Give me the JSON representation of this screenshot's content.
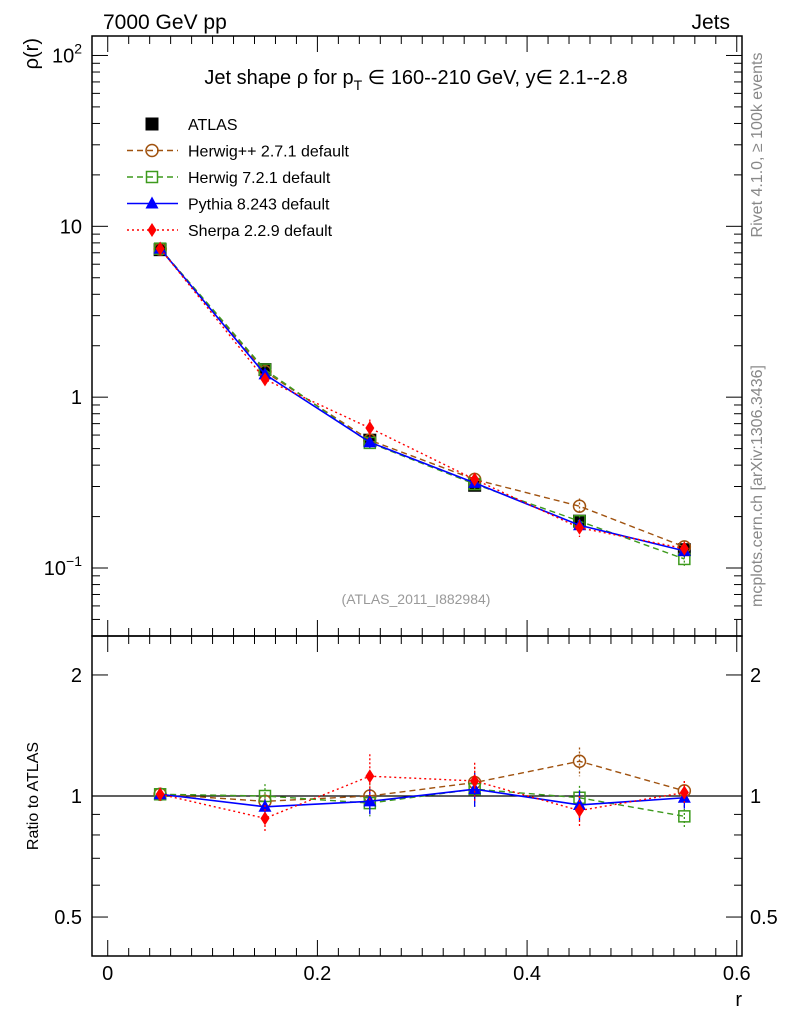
{
  "header": {
    "left": "7000 GeV pp",
    "right": "Jets"
  },
  "side_labels": {
    "rivet": "Rivet 4.1.0, ≥ 100k events",
    "mcplots": "mcplots.cern.ch [arXiv:1306.3436]"
  },
  "colors": {
    "atlas": "#000000",
    "herwigpp": "#a0520f",
    "herwig7": "#3d9a1d",
    "pythia": "#0000ff",
    "sherpa": "#ff0000"
  },
  "chart_data": [
    {
      "type": "line",
      "title": "Jet shape ρ for p_T ∈ 160--210 GeV, y∈ 2.1--2.8",
      "title_parts": {
        "prefix": "Jet shape ρ for p",
        "subscript": "T",
        "suffix": " ∈ 160--210 GeV, y∈ 2.1--2.8"
      },
      "ylabel": "ρ(r)",
      "yscale": "log",
      "ylim": [
        0.04,
        130
      ],
      "xlim": [
        -0.015,
        0.605
      ],
      "yticks": [
        {
          "value": 100,
          "base": "10",
          "exp": "2"
        },
        {
          "value": 10,
          "base": "10",
          "exp": ""
        },
        {
          "value": 1,
          "base": "1",
          "exp": ""
        },
        {
          "value": 0.1,
          "base": "10",
          "exp": "−1"
        }
      ],
      "watermark": "(ATLAS_2011_I882984)",
      "legend_position": "top-left",
      "x": [
        0.05,
        0.15,
        0.25,
        0.35,
        0.45,
        0.55
      ],
      "series": [
        {
          "name": "ATLAS",
          "key": "atlas",
          "style": "marker-only",
          "marker": "filled-square",
          "values": [
            7.3,
            1.45,
            0.56,
            0.305,
            0.188,
            0.128
          ],
          "errors": [
            0.2,
            0.05,
            0.03,
            0.01,
            0.01,
            0.01
          ]
        },
        {
          "name": "Herwig++ 2.7.1 default",
          "key": "herwigpp",
          "style": "dashed",
          "marker": "open-circle",
          "values": [
            7.35,
            1.41,
            0.56,
            0.33,
            0.23,
            0.133
          ],
          "errors": [
            0.15,
            0.05,
            0.04,
            0.02,
            0.025,
            0.01
          ]
        },
        {
          "name": "Herwig 7.2.1 default",
          "key": "herwig7",
          "style": "dashed",
          "marker": "open-square",
          "values": [
            7.4,
            1.45,
            0.54,
            0.31,
            0.188,
            0.113
          ],
          "errors": [
            0.15,
            0.08,
            0.04,
            0.02,
            0.015,
            0.01
          ]
        },
        {
          "name": "Pythia 8.243 default",
          "key": "pythia",
          "style": "solid",
          "marker": "filled-triangle",
          "values": [
            7.4,
            1.36,
            0.545,
            0.315,
            0.178,
            0.126
          ],
          "errors": [
            0.15,
            0.05,
            0.04,
            0.02,
            0.015,
            0.01
          ]
        },
        {
          "name": "Sherpa 2.2.9 default",
          "key": "sherpa",
          "style": "dotted",
          "marker": "filled-diamond",
          "values": [
            7.4,
            1.27,
            0.66,
            0.33,
            0.172,
            0.13
          ],
          "errors": [
            0.15,
            0.1,
            0.08,
            0.02,
            0.02,
            0.01
          ]
        }
      ]
    },
    {
      "type": "line",
      "title": "",
      "ylabel": "Ratio to ATLAS",
      "xlabel": "r",
      "yscale": "log",
      "ylim": [
        0.4,
        2.5
      ],
      "xlim": [
        -0.015,
        0.605
      ],
      "yticks": [
        0.5,
        1,
        2
      ],
      "xticks": [
        0,
        0.2,
        0.4,
        0.6
      ],
      "xtick_labels": [
        "0",
        "0.2",
        "0.4",
        "0.6"
      ],
      "reference_line": 1,
      "x": [
        0.05,
        0.15,
        0.25,
        0.35,
        0.45,
        0.55
      ],
      "series": [
        {
          "name": "Herwig++ 2.7.1 default",
          "key": "herwigpp",
          "style": "dashed",
          "marker": "open-circle",
          "values": [
            1.01,
            0.97,
            1.0,
            1.08,
            1.22,
            1.03
          ],
          "errors": [
            0.03,
            0.04,
            0.1,
            0.1,
            0.1,
            0.06
          ]
        },
        {
          "name": "Herwig 7.2.1 default",
          "key": "herwig7",
          "style": "dashed",
          "marker": "open-square",
          "values": [
            1.01,
            1.0,
            0.96,
            1.04,
            0.99,
            0.89
          ],
          "errors": [
            0.03,
            0.07,
            0.07,
            0.1,
            0.07,
            0.06
          ]
        },
        {
          "name": "Pythia 8.243 default",
          "key": "pythia",
          "style": "solid",
          "marker": "filled-triangle",
          "values": [
            1.01,
            0.94,
            0.97,
            1.04,
            0.95,
            0.99
          ],
          "errors": [
            0.03,
            0.04,
            0.07,
            0.1,
            0.08,
            0.06
          ]
        },
        {
          "name": "Sherpa 2.2.9 default",
          "key": "sherpa",
          "style": "dotted",
          "marker": "filled-diamond",
          "values": [
            1.01,
            0.88,
            1.12,
            1.09,
            0.92,
            1.02
          ],
          "errors": [
            0.03,
            0.07,
            0.15,
            0.12,
            0.08,
            0.07
          ]
        }
      ]
    }
  ]
}
